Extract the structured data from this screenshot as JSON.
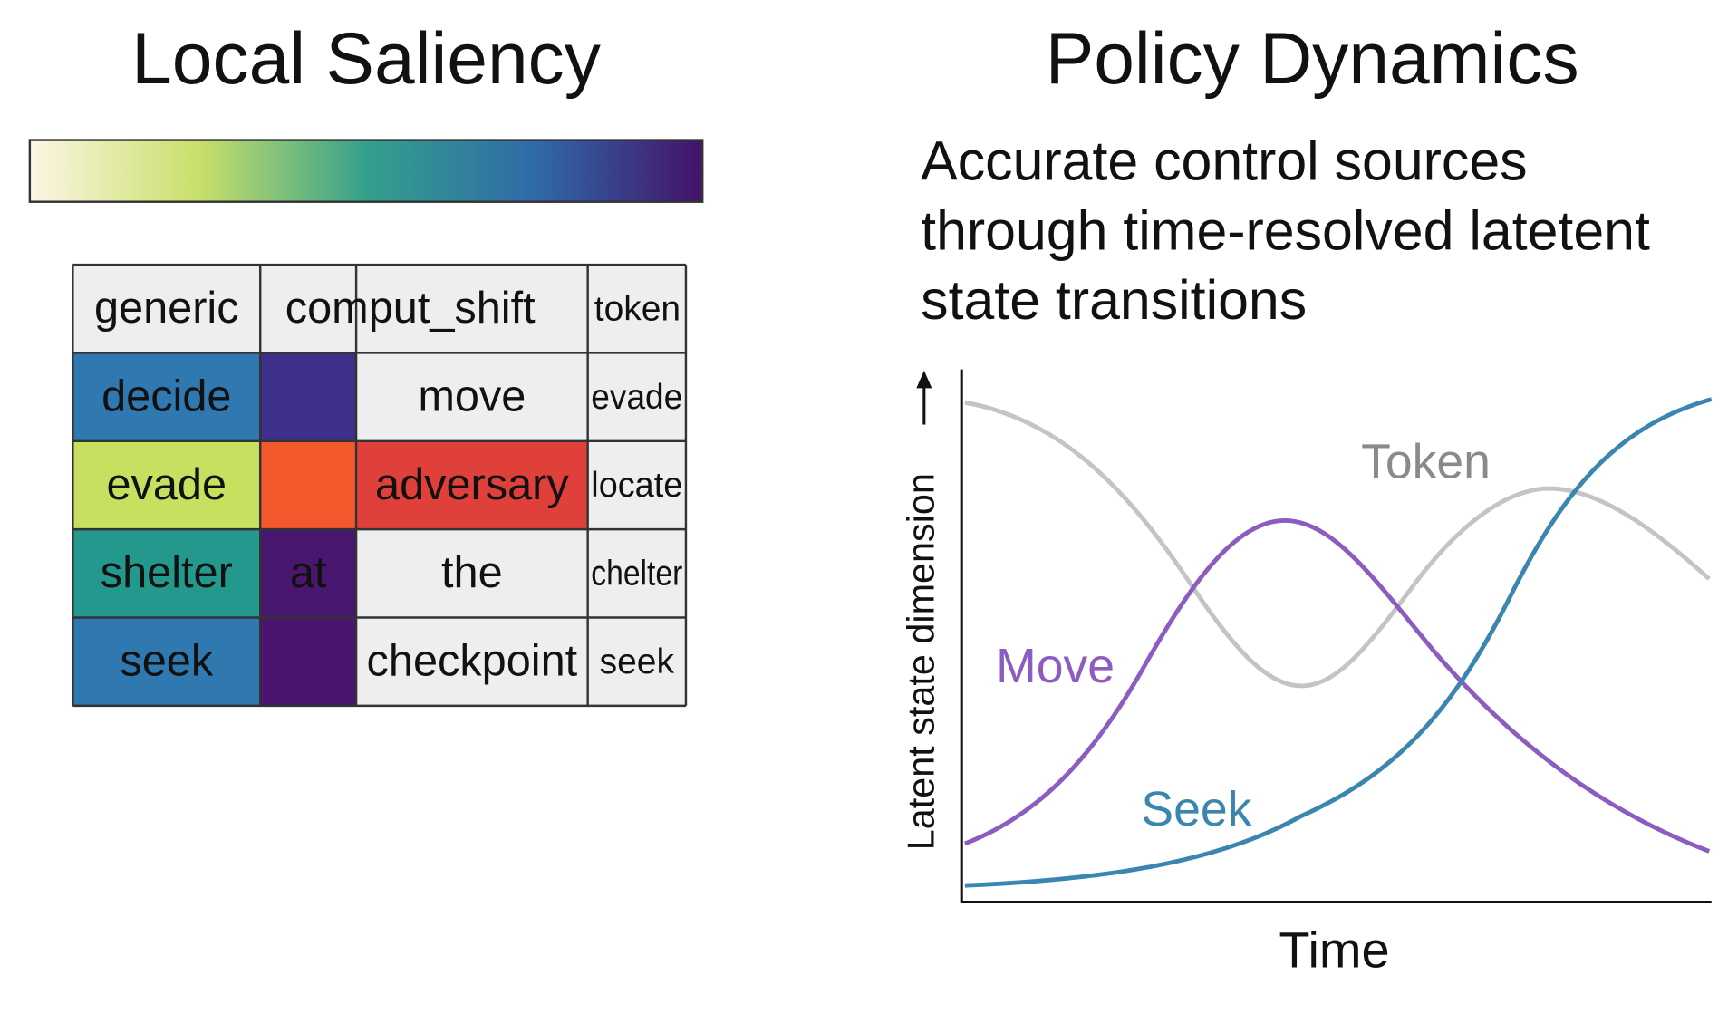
{
  "saliency": {
    "title": "Local Saliency",
    "colorbar": [
      "#fdf6e4",
      "#c9e06a",
      "#34a08b",
      "#2f6aa8",
      "#44126a"
    ],
    "header": [
      "generic",
      "comput_shift",
      "token"
    ],
    "rows": [
      [
        {
          "text": "decide",
          "fill": "#2f78b0"
        },
        {
          "fill": "#3d2f8a"
        },
        {
          "text": "move",
          "fill": "#eeeeee"
        },
        {
          "text": "evade",
          "fill": "#eeeeee"
        }
      ],
      [
        {
          "text": "evade",
          "fill": "#c8e060"
        },
        {
          "fill": "#f2582c"
        },
        {
          "text": "adversary",
          "fill": "#e0403a"
        },
        {
          "text": "locate",
          "fill": "#eeeeee"
        }
      ],
      [
        {
          "text": "shelter",
          "fill": "#22998c"
        },
        {
          "text": "at",
          "fill": "#49176f"
        },
        {
          "text": "the",
          "fill": "#eeeeee"
        },
        {
          "text": "chelter",
          "fill": "#eeeeee"
        }
      ],
      [
        {
          "text": "seek",
          "fill": "#2f78b0"
        },
        {
          "fill": "#4a1470"
        },
        {
          "text": "checkpoint",
          "fill": "#eeeeee"
        },
        {
          "text": "seek",
          "fill": "#eeeeee"
        }
      ]
    ]
  },
  "policy": {
    "title": "Policy Dynamics",
    "subtitle": [
      "Accurate control sources",
      "through time-resolved latetent",
      "state transitions"
    ],
    "y_label": "Latent state dimension",
    "x_label": "Time",
    "curves": [
      {
        "label": "Token",
        "color": "#c4c4c4",
        "label_color": "#8a8a8a"
      },
      {
        "label": "Move",
        "color": "#8d5cc0",
        "label_color": "#8d5cc0"
      },
      {
        "label": "Seek",
        "color": "#3a86b0",
        "label_color": "#3a86b0"
      }
    ]
  }
}
